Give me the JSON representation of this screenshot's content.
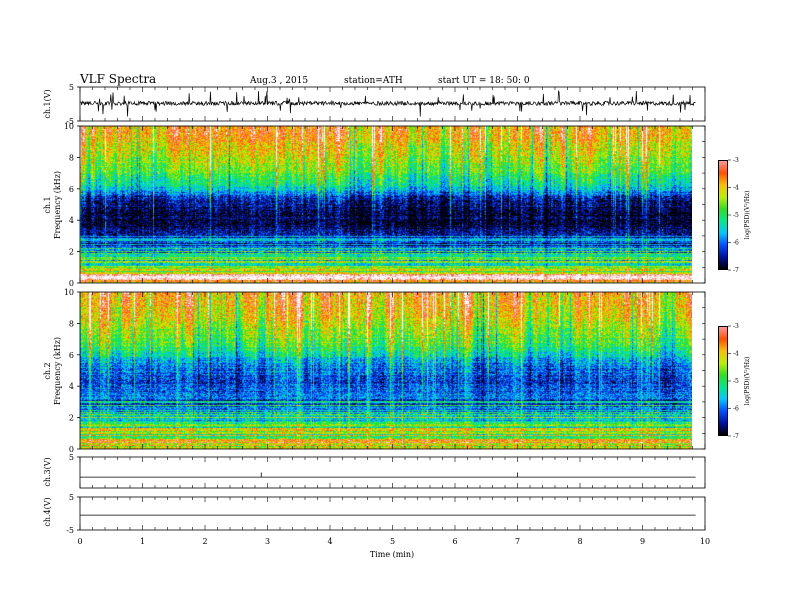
{
  "header": {
    "title": "VLF  Spectra",
    "date": "Aug.3  , 2015",
    "station": "station=ATH",
    "start": "start  UT  =    18: 50: 0"
  },
  "chart_data": [
    {
      "type": "line",
      "id": "ch1-waveform",
      "ylabel": "ch.1(V)",
      "ylim": [
        -5,
        5
      ],
      "yticks": [
        "5",
        "-5"
      ],
      "xlim": [
        0,
        9.85
      ],
      "baseline": 0.2,
      "noise_amplitude": 0.6,
      "spike_amplitude": 3.5
    },
    {
      "type": "heatmap",
      "id": "ch1-spectrogram",
      "ylabel": "ch.1\nFrequency  (kHz)",
      "ylim": [
        0,
        10
      ],
      "yticks": [
        "0",
        "2",
        "4",
        "6",
        "8",
        "10"
      ],
      "xlim": [
        0,
        9.85
      ],
      "colorbar": {
        "label": "log(PSD)(V²/Hz)",
        "range": [
          -7,
          -3
        ],
        "ticks": [
          "-3",
          "-4",
          "-5",
          "-6",
          "-7"
        ]
      },
      "profile_khz": [
        [
          0,
          -4.6
        ],
        [
          0.35,
          -3.3
        ],
        [
          0.6,
          -4.2
        ],
        [
          1.0,
          -4.9
        ],
        [
          1.6,
          -5.3
        ],
        [
          2.2,
          -5.8
        ],
        [
          3.0,
          -6.4
        ],
        [
          3.6,
          -6.8
        ],
        [
          4.4,
          -6.9
        ],
        [
          5.4,
          -6.5
        ],
        [
          6.0,
          -5.7
        ],
        [
          6.6,
          -5.2
        ],
        [
          7.4,
          -4.8
        ],
        [
          8.4,
          -4.4
        ],
        [
          9.2,
          -4.1
        ],
        [
          10,
          -3.9
        ]
      ]
    },
    {
      "type": "heatmap",
      "id": "ch2-spectrogram",
      "ylabel": "ch.2\nFrequency  (kHz)",
      "ylim": [
        0,
        10
      ],
      "yticks": [
        "0",
        "2",
        "4",
        "6",
        "8",
        "10"
      ],
      "xlim": [
        0,
        9.85
      ],
      "colorbar": {
        "label": "log(PSD)(V²/Hz)",
        "range": [
          -7,
          -3
        ],
        "ticks": [
          "-3",
          "-4",
          "-5",
          "-6",
          "-7"
        ]
      },
      "profile_khz": [
        [
          0,
          -4.5
        ],
        [
          0.5,
          -4.1
        ],
        [
          1.0,
          -4.7
        ],
        [
          1.6,
          -5.0
        ],
        [
          2.2,
          -5.4
        ],
        [
          3.0,
          -5.8
        ],
        [
          3.6,
          -6.2
        ],
        [
          4.4,
          -6.3
        ],
        [
          5.4,
          -6.0
        ],
        [
          6.0,
          -5.6
        ],
        [
          6.6,
          -5.1
        ],
        [
          7.4,
          -4.8
        ],
        [
          8.4,
          -4.4
        ],
        [
          9.2,
          -4.2
        ],
        [
          10,
          -4.0
        ]
      ]
    },
    {
      "type": "line",
      "id": "ch3-waveform",
      "ylabel": "ch.3(V)",
      "ylim": [
        -5,
        5
      ],
      "yticks": [
        "5"
      ],
      "xlim": [
        0,
        9.85
      ],
      "baseline": -1.5,
      "spike_times_min": [
        2.9,
        7.0
      ],
      "spike_amplitude": 1.5
    },
    {
      "type": "line",
      "id": "ch4-waveform",
      "ylabel": "ch.4(V)",
      "ylim": [
        -5,
        5
      ],
      "yticks": [
        "5",
        "-5"
      ],
      "xlim": [
        0,
        9.85
      ],
      "baseline": -0.5,
      "pulse_interval_min": 1.0,
      "pulse_offset_min": 1.0
    }
  ],
  "xaxis": {
    "label": "Time  (min)",
    "ticks": [
      "0",
      "1",
      "2",
      "3",
      "4",
      "5",
      "6",
      "7",
      "8",
      "9",
      "10"
    ],
    "range": [
      0,
      10
    ]
  },
  "colors": {
    "colormap": [
      "#000000",
      "#0010a0",
      "#0050ff",
      "#00c8ff",
      "#00e890",
      "#30e020",
      "#c0ef00",
      "#f8c000",
      "#ff5000",
      "#ff9898",
      "#ffffff"
    ],
    "axis": "#000000",
    "trace": "#000000"
  }
}
